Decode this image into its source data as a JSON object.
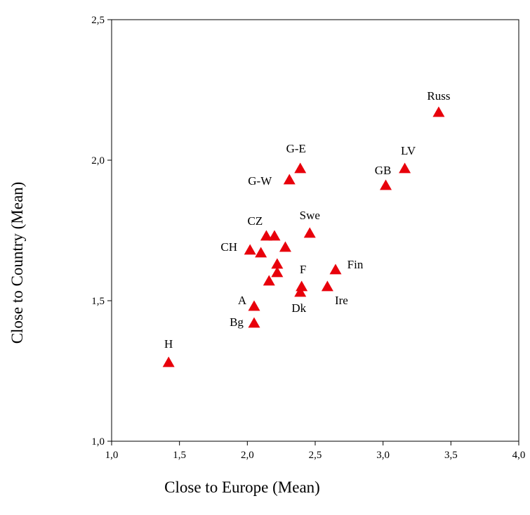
{
  "chart_data": {
    "type": "scatter",
    "xlabel": "Close to Europe (Mean)",
    "ylabel": "Close to Country (Mean)",
    "xlim": [
      1.0,
      4.0
    ],
    "ylim": [
      1.0,
      2.5
    ],
    "xticks": [
      "1,0",
      "1,5",
      "2,0",
      "2,5",
      "3,0",
      "3,5",
      "4,0"
    ],
    "yticks": [
      "1,0",
      "1,5",
      "2,0",
      "2,5"
    ],
    "grid": false,
    "marker": "triangle",
    "marker_color": "#e8000b",
    "points": [
      {
        "label": "Russ",
        "x": 3.41,
        "y": 2.17
      },
      {
        "label": "LV",
        "x": 3.16,
        "y": 1.97
      },
      {
        "label": "GB",
        "x": 3.02,
        "y": 1.91
      },
      {
        "label": "G-E",
        "x": 2.39,
        "y": 1.97
      },
      {
        "label": "G-W",
        "x": 2.31,
        "y": 1.93
      },
      {
        "label": "Swe",
        "x": 2.46,
        "y": 1.74
      },
      {
        "label": "CZ",
        "x": 2.14,
        "y": 1.73
      },
      {
        "label": "",
        "x": 2.2,
        "y": 1.73
      },
      {
        "label": "",
        "x": 2.28,
        "y": 1.69
      },
      {
        "label": "CH",
        "x": 2.02,
        "y": 1.68
      },
      {
        "label": "",
        "x": 2.1,
        "y": 1.67
      },
      {
        "label": "",
        "x": 2.22,
        "y": 1.63
      },
      {
        "label": "Fin",
        "x": 2.65,
        "y": 1.61
      },
      {
        "label": "",
        "x": 2.22,
        "y": 1.6
      },
      {
        "label": "",
        "x": 2.16,
        "y": 1.57
      },
      {
        "label": "F",
        "x": 2.4,
        "y": 1.55
      },
      {
        "label": "Ire",
        "x": 2.59,
        "y": 1.55
      },
      {
        "label": "Dk",
        "x": 2.39,
        "y": 1.53
      },
      {
        "label": "A",
        "x": 2.05,
        "y": 1.48
      },
      {
        "label": "Bg",
        "x": 2.05,
        "y": 1.42
      },
      {
        "label": "H",
        "x": 1.42,
        "y": 1.28
      }
    ]
  }
}
